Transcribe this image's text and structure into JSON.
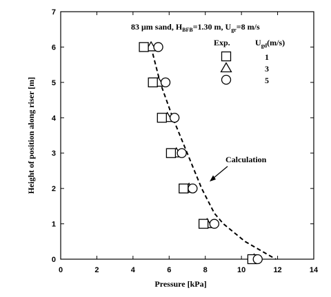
{
  "chart_data": {
    "type": "scatter",
    "xlabel": "Pressure [kPa]",
    "ylabel": "Height of position along riser [m]",
    "xlim": [
      0,
      14
    ],
    "ylim": [
      0,
      7
    ],
    "xticks": [
      "0",
      "2",
      "4",
      "6",
      "8",
      "10",
      "12",
      "14"
    ],
    "yticks": [
      "0",
      "1",
      "2",
      "3",
      "4",
      "5",
      "6",
      "7"
    ],
    "grid": false,
    "conditions": {
      "text": "83 μm sand, H",
      "sub1": "BFB",
      "text2": "=1.30 m, U",
      "sub2": "gr",
      "text3": "=8 m/s"
    },
    "legend": {
      "header_exp": "Exp.",
      "header_ugd": "U",
      "header_ugd_sub": "gd",
      "header_ugd_unit": "(m/s)",
      "entries": [
        {
          "marker": "square",
          "label": "1"
        },
        {
          "marker": "triangle",
          "label": "3"
        },
        {
          "marker": "circle",
          "label": "5"
        }
      ]
    },
    "series": [
      {
        "name": "1",
        "marker": "square",
        "x": [
          10.6,
          7.9,
          6.8,
          6.1,
          5.6,
          5.1,
          4.6
        ],
        "y": [
          0,
          1,
          2,
          3,
          4,
          5,
          6
        ]
      },
      {
        "name": "3",
        "marker": "triangle",
        "x": [
          10.7,
          8.1,
          7.1,
          6.4,
          5.9,
          5.4,
          5.0
        ],
        "y": [
          0,
          1,
          2,
          3,
          4,
          5,
          6
        ]
      },
      {
        "name": "5",
        "marker": "circle",
        "x": [
          10.9,
          8.5,
          7.3,
          6.7,
          6.3,
          5.8,
          5.4
        ],
        "y": [
          0,
          1,
          2,
          3,
          4,
          5,
          6
        ]
      }
    ],
    "calculation": {
      "label": "Calculation",
      "x": [
        5.0,
        5.5,
        6.2,
        7.0,
        7.8,
        8.5,
        9.0,
        10.2,
        11.9
      ],
      "y": [
        6.0,
        5.0,
        4.0,
        3.0,
        2.0,
        1.3,
        1.0,
        0.5,
        0.0
      ]
    }
  }
}
